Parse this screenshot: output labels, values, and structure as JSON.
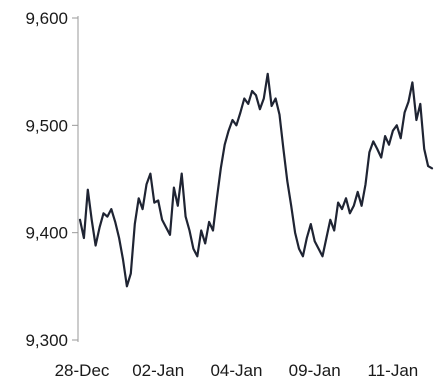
{
  "chart_data": {
    "type": "line",
    "title": "",
    "xlabel": "",
    "ylabel": "",
    "ylim": [
      9300,
      9600
    ],
    "yticks": [
      {
        "value": 9600,
        "label": "9,600"
      },
      {
        "value": 9500,
        "label": "9,500"
      },
      {
        "value": 9400,
        "label": "9,400"
      },
      {
        "value": 9300,
        "label": "9,300"
      }
    ],
    "xticks": [
      {
        "x": 0,
        "label": "28-Dec"
      },
      {
        "x": 20,
        "label": "02-Jan"
      },
      {
        "x": 40,
        "label": "04-Jan"
      },
      {
        "x": 60,
        "label": "09-Jan"
      },
      {
        "x": 80,
        "label": "11-Jan"
      }
    ],
    "xlim": [
      0,
      90
    ],
    "grid": false,
    "line_color": "#1f2433",
    "series": [
      {
        "name": "",
        "x": [
          0,
          1,
          2,
          3,
          4,
          5,
          6,
          7,
          8,
          9,
          10,
          11,
          12,
          13,
          14,
          15,
          16,
          17,
          18,
          19,
          20,
          21,
          22,
          23,
          24,
          25,
          26,
          27,
          28,
          29,
          30,
          31,
          32,
          33,
          34,
          35,
          36,
          37,
          38,
          39,
          40,
          41,
          42,
          43,
          44,
          45,
          46,
          47,
          48,
          49,
          50,
          51,
          52,
          53,
          54,
          55,
          56,
          57,
          58,
          59,
          60,
          61,
          62,
          63,
          64,
          65,
          66,
          67,
          68,
          69,
          70,
          71,
          72,
          73,
          74,
          75,
          76,
          77,
          78,
          79,
          80,
          81,
          82,
          83,
          84,
          85,
          86,
          87,
          88,
          89,
          90
        ],
        "values": [
          9412,
          9395,
          9440,
          9412,
          9388,
          9405,
          9418,
          9415,
          9422,
          9410,
          9395,
          9375,
          9350,
          9362,
          9408,
          9432,
          9422,
          9445,
          9455,
          9428,
          9430,
          9412,
          9405,
          9398,
          9442,
          9425,
          9455,
          9415,
          9402,
          9385,
          9378,
          9402,
          9390,
          9410,
          9402,
          9432,
          9460,
          9482,
          9495,
          9505,
          9500,
          9512,
          9525,
          9520,
          9532,
          9528,
          9515,
          9525,
          9548,
          9518,
          9525,
          9510,
          9478,
          9448,
          9425,
          9400,
          9385,
          9378,
          9395,
          9408,
          9392,
          9385,
          9378,
          9395,
          9412,
          9402,
          9428,
          9422,
          9432,
          9418,
          9425,
          9438,
          9425,
          9445,
          9475,
          9485,
          9478,
          9470,
          9490,
          9482,
          9495,
          9500,
          9488,
          9512,
          9522,
          9540,
          9505,
          9520,
          9478,
          9462,
          9460
        ]
      }
    ]
  }
}
